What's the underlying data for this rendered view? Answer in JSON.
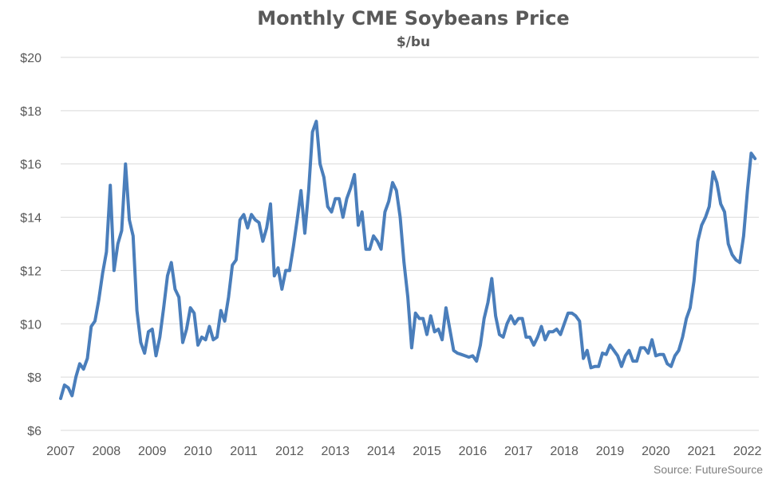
{
  "chart_data": {
    "type": "line",
    "title": "Monthly CME Soybeans Price",
    "subtitle": "$/bu",
    "source": "Source: FutureSource",
    "xlabel": "",
    "ylabel": "",
    "ylim": [
      6,
      20
    ],
    "yticks": [
      6,
      8,
      10,
      12,
      14,
      16,
      18,
      20
    ],
    "ytick_labels": [
      "$6",
      "$8",
      "$10",
      "$12",
      "$14",
      "$16",
      "$18",
      "$20"
    ],
    "xlim": [
      2007,
      2022.25
    ],
    "xticks": [
      2007,
      2008,
      2009,
      2010,
      2011,
      2012,
      2013,
      2014,
      2015,
      2016,
      2017,
      2018,
      2019,
      2020,
      2021,
      2022
    ],
    "xtick_labels": [
      "2007",
      "2008",
      "2009",
      "2010",
      "2011",
      "2012",
      "2013",
      "2014",
      "2015",
      "2016",
      "2017",
      "2018",
      "2019",
      "2020",
      "2021",
      "2022"
    ],
    "grid": true,
    "colors": {
      "series": "#4a7ebb",
      "grid": "#d9d9d9",
      "text": "#595959"
    },
    "series": [
      {
        "start": "2007-01",
        "frequency": "monthly",
        "values": [
          7.2,
          7.7,
          7.6,
          7.3,
          8.0,
          8.5,
          8.3,
          8.7,
          9.9,
          10.1,
          10.9,
          11.9,
          12.7,
          15.2,
          12.0,
          13.0,
          13.5,
          16.0,
          13.9,
          13.3,
          10.5,
          9.3,
          8.9,
          9.7,
          9.8,
          8.8,
          9.5,
          10.6,
          11.8,
          12.3,
          11.3,
          11.0,
          9.3,
          9.8,
          10.6,
          10.4,
          9.2,
          9.5,
          9.4,
          9.9,
          9.4,
          9.5,
          10.5,
          10.1,
          11.0,
          12.2,
          12.4,
          13.9,
          14.1,
          13.6,
          14.1,
          13.9,
          13.8,
          13.1,
          13.6,
          14.5,
          11.8,
          12.1,
          11.3,
          12.0,
          12.0,
          12.9,
          13.9,
          15.0,
          13.4,
          15.0,
          17.2,
          17.6,
          16.0,
          15.5,
          14.4,
          14.2,
          14.7,
          14.7,
          14.0,
          14.7,
          15.1,
          15.6,
          13.7,
          14.2,
          12.8,
          12.8,
          13.3,
          13.1,
          12.8,
          14.2,
          14.6,
          15.3,
          15.0,
          14.0,
          12.3,
          11.0,
          9.1,
          10.4,
          10.2,
          10.2,
          9.6,
          10.3,
          9.7,
          9.8,
          9.4,
          10.6,
          9.8,
          9.0,
          8.9,
          8.85,
          8.8,
          8.75,
          8.8,
          8.6,
          9.2,
          10.2,
          10.8,
          11.7,
          10.3,
          9.6,
          9.5,
          10.0,
          10.3,
          10.0,
          10.2,
          10.2,
          9.5,
          9.5,
          9.2,
          9.5,
          9.9,
          9.4,
          9.7,
          9.7,
          9.8,
          9.6,
          10.0,
          10.4,
          10.4,
          10.3,
          10.1,
          8.7,
          9.0,
          8.35,
          8.4,
          8.4,
          8.9,
          8.85,
          9.2,
          9.0,
          8.8,
          8.4,
          8.8,
          9.0,
          8.6,
          8.6,
          9.1,
          9.1,
          8.9,
          9.4,
          8.8,
          8.85,
          8.85,
          8.5,
          8.4,
          8.8,
          9.0,
          9.5,
          10.2,
          10.6,
          11.6,
          13.1,
          13.7,
          14.0,
          14.4,
          15.7,
          15.3,
          14.5,
          14.2,
          13.0,
          12.6,
          12.4,
          12.3,
          13.3,
          15.0,
          16.4,
          16.2
        ]
      }
    ]
  }
}
